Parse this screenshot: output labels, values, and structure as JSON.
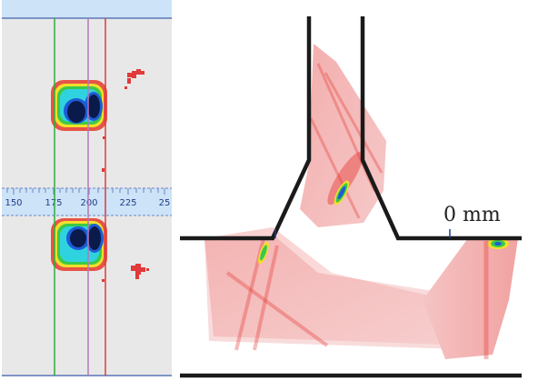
{
  "scale": {
    "ticks": [
      "150",
      "175",
      "200",
      "225",
      "25"
    ]
  },
  "weld_view": {
    "position_label": "0 mm"
  },
  "colors": {
    "panel_background": "#e8e8e8",
    "scale_bar": "#cde3f7",
    "cursor_green": "#2fae3a",
    "cursor_violet": "#b27ab9",
    "cursor_red": "#e03a3a",
    "defect_core": "#0a1a4a",
    "weld_outline": "#1a1a1a",
    "scan_red": "#e53935"
  }
}
